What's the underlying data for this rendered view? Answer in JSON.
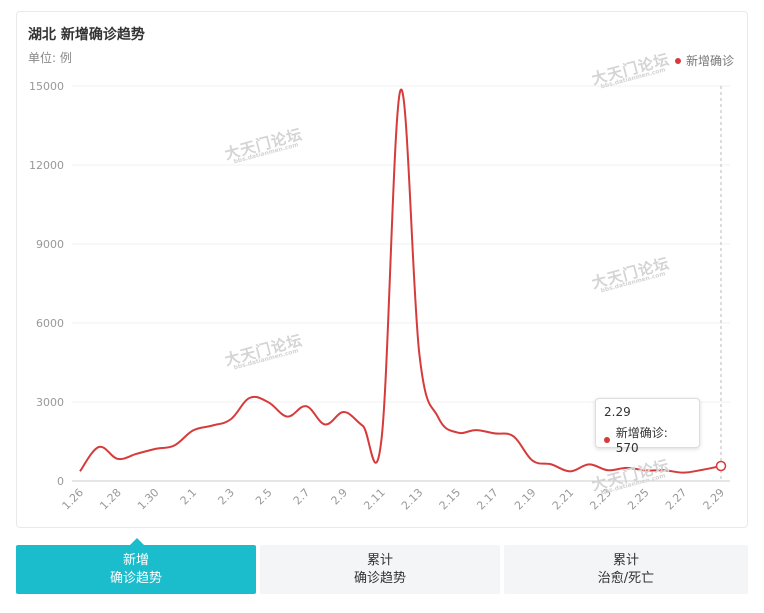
{
  "header": {
    "title": "湖北 新增确诊趋势",
    "unit": "单位: 例"
  },
  "legend": {
    "label": "新增确诊",
    "color": "#d63b3b"
  },
  "watermark": {
    "text": "大天门论坛",
    "sub": "bbs.datianmen.com"
  },
  "tooltip": {
    "date": "2.29",
    "label": "新增确诊: 570"
  },
  "chart_data": {
    "type": "line",
    "title": "湖北 新增确诊趋势",
    "ylabel": "单位: 例",
    "ylim": [
      0,
      15000
    ],
    "yticks": [
      "15000",
      "12000",
      "9000",
      "6000",
      "3000",
      "0"
    ],
    "grid": true,
    "legend_position": "top-right",
    "x_tick_labels": [
      "1.26",
      "1.28",
      "1.30",
      "2.1",
      "2.3",
      "2.5",
      "2.7",
      "2.9",
      "2.11",
      "2.13",
      "2.15",
      "2.17",
      "2.19",
      "2.21",
      "2.23",
      "2.25",
      "2.27",
      "2.29"
    ],
    "x": [
      "1.26",
      "1.27",
      "1.28",
      "1.29",
      "1.30",
      "1.31",
      "2.1",
      "2.2",
      "2.3",
      "2.4",
      "2.5",
      "2.6",
      "2.7",
      "2.8",
      "2.9",
      "2.10",
      "2.11",
      "2.12",
      "2.13",
      "2.14",
      "2.15",
      "2.16",
      "2.17",
      "2.18",
      "2.19",
      "2.20",
      "2.21",
      "2.22",
      "2.23",
      "2.24",
      "2.25",
      "2.26",
      "2.27",
      "2.28",
      "2.29"
    ],
    "series": [
      {
        "name": "新增确诊",
        "color": "#d63b3b",
        "values": [
          371,
          1291,
          840,
          1032,
          1220,
          1347,
          1921,
          2103,
          2345,
          3156,
          2987,
          2447,
          2841,
          2147,
          2618,
          2097,
          1638,
          14840,
          4823,
          2420,
          1843,
          1933,
          1807,
          1693,
          775,
          631,
          366,
          630,
          409,
          499,
          401,
          409,
          318,
          423,
          570
        ]
      }
    ]
  },
  "tabs": [
    {
      "line1": "新增",
      "line2": "确诊趋势",
      "active": true
    },
    {
      "line1": "累计",
      "line2": "确诊趋势",
      "active": false
    },
    {
      "line1": "累计",
      "line2": "治愈/死亡",
      "active": false
    }
  ]
}
